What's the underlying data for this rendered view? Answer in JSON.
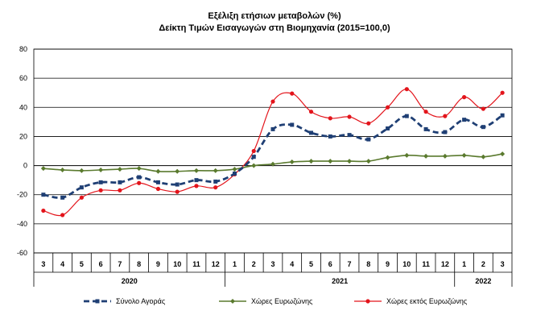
{
  "chart_data": {
    "type": "line",
    "title": "Εξέλιξη ετήσιων μεταβολών (%)",
    "subtitle": "Δείκτη Τιμών Εισαγωγών στη Βιομηχανία (2015=100,0)",
    "ylim": [
      -60,
      80
    ],
    "yticks": [
      -60,
      -40,
      -20,
      0,
      20,
      40,
      60,
      80
    ],
    "grid": true,
    "legend_position": "bottom",
    "x_month_labels": [
      "3",
      "4",
      "5",
      "6",
      "7",
      "8",
      "9",
      "10",
      "11",
      "12",
      "1",
      "2",
      "3",
      "4",
      "5",
      "6",
      "7",
      "8",
      "9",
      "10",
      "11",
      "12",
      "1",
      "2",
      "3"
    ],
    "year_groups": [
      {
        "label": "2020",
        "count": 10
      },
      {
        "label": "2021",
        "count": 12
      },
      {
        "label": "2022",
        "count": 3
      }
    ],
    "series": [
      {
        "name": "Σύνολο Αγοράς",
        "color": "#1f3f74",
        "style": "dashed-square",
        "values": [
          -20,
          -22,
          -15,
          -11.5,
          -11.5,
          -8,
          -11.5,
          -13,
          -10,
          -11,
          -5.5,
          6,
          25,
          28,
          22.5,
          20,
          21,
          18,
          25.5,
          34,
          25,
          23,
          31.5,
          26.5,
          34.5
        ]
      },
      {
        "name": "Χώρες Ευρωζώνης",
        "color": "#5a7a2e",
        "style": "solid-diamond",
        "values": [
          -2,
          -3,
          -3.5,
          -3,
          -2.5,
          -2,
          -4,
          -4,
          -3.5,
          -3.5,
          -2.5,
          0,
          1,
          2.5,
          3,
          3,
          3,
          3,
          5.5,
          7,
          6.5,
          6.5,
          7,
          6,
          8
        ]
      },
      {
        "name": "Χώρες εκτός Ευρωζώνης",
        "color": "#e3141b",
        "style": "solid-circle",
        "values": [
          -31,
          -34,
          -22,
          -17,
          -17,
          -12,
          -16,
          -18,
          -14,
          -15,
          -6,
          10,
          44,
          49.5,
          37,
          32.5,
          33.5,
          29,
          40,
          52.5,
          37,
          34,
          47,
          39,
          50
        ]
      }
    ]
  }
}
